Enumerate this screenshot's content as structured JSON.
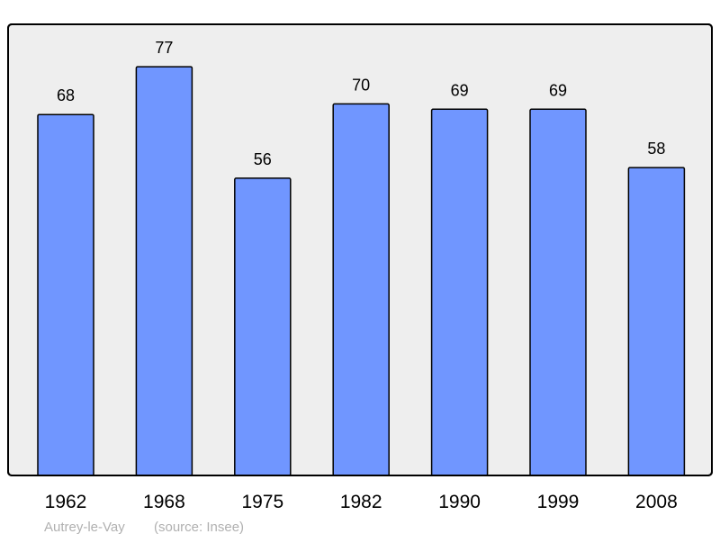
{
  "chart_data": {
    "type": "bar",
    "categories": [
      "1962",
      "1968",
      "1975",
      "1982",
      "1990",
      "1999",
      "2008"
    ],
    "values": [
      68,
      77,
      56,
      70,
      69,
      69,
      58
    ],
    "title": "",
    "xlabel": "",
    "ylabel": "",
    "ylim": [
      0,
      85
    ],
    "grid": false,
    "data_labels": true,
    "colors": {
      "bar": "#7096ff",
      "bar_border": "#000000",
      "plot_background": "#eeeeee",
      "caption": "#b0b0b0"
    }
  },
  "caption": {
    "place": "Autrey-le-Vay",
    "source": "(source: Insee)"
  }
}
